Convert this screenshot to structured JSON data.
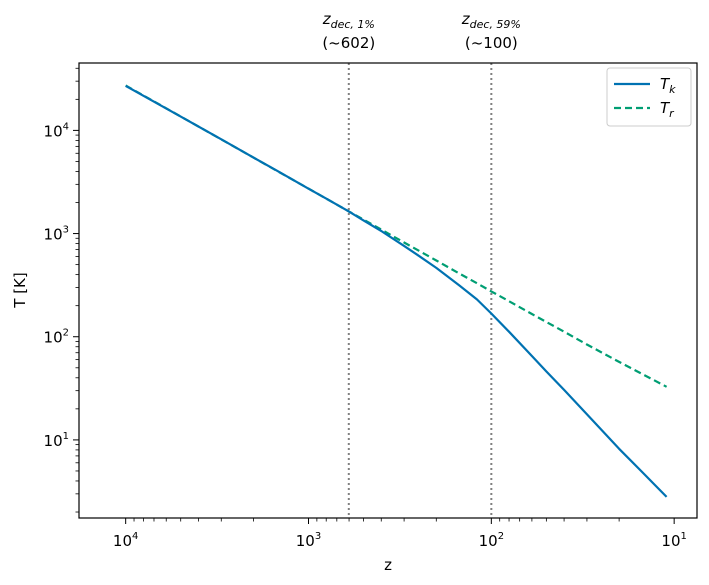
{
  "chart_data": {
    "type": "line",
    "xlabel": "z",
    "ylabel": "T [K]",
    "x_scale": "log",
    "y_scale": "log",
    "x_inverted": true,
    "xlim": [
      18000,
      7.5
    ],
    "ylim": [
      1.75,
      45000
    ],
    "x_ticks": [
      {
        "value": 10000,
        "base": "10",
        "exp": "4"
      },
      {
        "value": 1000,
        "base": "10",
        "exp": "3"
      },
      {
        "value": 100,
        "base": "10",
        "exp": "2"
      },
      {
        "value": 10,
        "base": "10",
        "exp": "1"
      }
    ],
    "y_ticks": [
      {
        "value": 10,
        "base": "10",
        "exp": "1"
      },
      {
        "value": 100,
        "base": "10",
        "exp": "2"
      },
      {
        "value": 1000,
        "base": "10",
        "exp": "3"
      },
      {
        "value": 10000,
        "base": "10",
        "exp": "4"
      }
    ],
    "grid": false,
    "legend_position": "top-right",
    "series": [
      {
        "name": "T",
        "name_sub": "k",
        "color": "#0072b2",
        "style": "solid",
        "x": [
          10000,
          5000,
          3000,
          2000,
          1500,
          1000,
          800,
          602,
          500,
          400,
          300,
          250,
          200,
          150,
          120,
          100,
          80,
          60,
          50,
          40,
          30,
          20,
          15,
          11
        ],
        "y": [
          27000,
          13600,
          8200,
          5450,
          4100,
          2720,
          2180,
          1640,
          1340,
          1060,
          760,
          610,
          465,
          315,
          230,
          168,
          112,
          65,
          46,
          30.5,
          17.7,
          8.2,
          4.9,
          2.8
        ]
      },
      {
        "name": "T",
        "name_sub": "r",
        "color": "#009e73",
        "style": "dashed",
        "x": [
          10000,
          5000,
          3000,
          2000,
          1500,
          1000,
          800,
          602,
          500,
          400,
          300,
          250,
          200,
          150,
          120,
          100,
          80,
          60,
          50,
          40,
          30,
          20,
          15,
          11
        ],
        "y": [
          27250,
          13630,
          8180,
          5450,
          4090,
          2730,
          2180,
          1640,
          1365,
          1093,
          820,
          684,
          548,
          411,
          330,
          275,
          221,
          166,
          139,
          112,
          84,
          57,
          43.6,
          32.7
        ]
      }
    ],
    "vlines": [
      {
        "x": 602,
        "label_main": "z",
        "label_sub": "dec, 1%",
        "label_val": "(~602)",
        "color": "#808080",
        "style": "dotted"
      },
      {
        "x": 100,
        "label_main": "z",
        "label_sub": "dec, 59%",
        "label_val": "(~100)",
        "color": "#808080",
        "style": "dotted"
      }
    ]
  }
}
